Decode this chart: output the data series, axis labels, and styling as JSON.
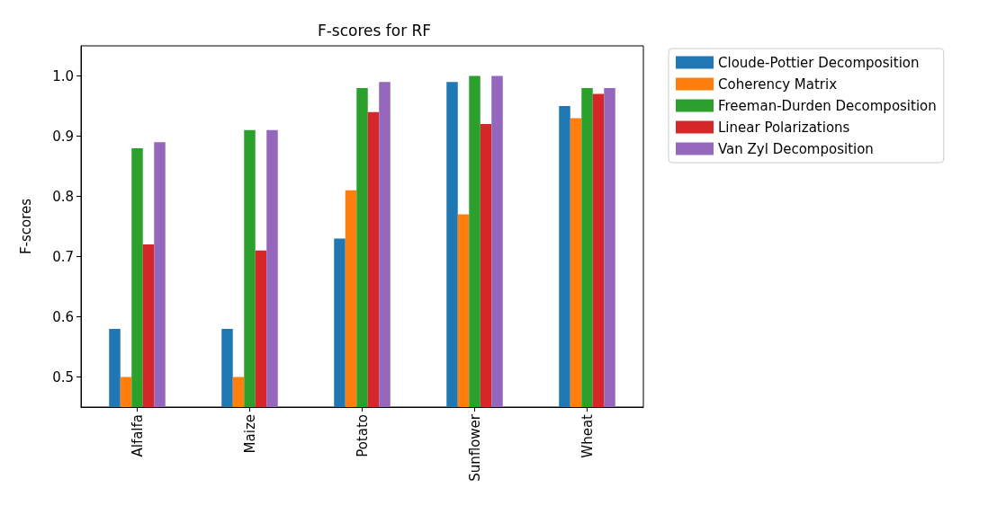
{
  "chart_data": {
    "type": "bar",
    "title": "F-scores for RF",
    "ylabel": "F-scores",
    "categories": [
      "Alfalfa",
      "Maize",
      "Potato",
      "Sunflower",
      "Wheat"
    ],
    "series": [
      {
        "name": "Cloude-Pottier Decomposition",
        "color": "#1f77b4",
        "values": [
          0.58,
          0.58,
          0.73,
          0.99,
          0.95
        ]
      },
      {
        "name": "Coherency Matrix",
        "color": "#ff7f0e",
        "values": [
          0.5,
          0.5,
          0.81,
          0.77,
          0.93
        ]
      },
      {
        "name": "Freeman-Durden Decomposition",
        "color": "#2ca02c",
        "values": [
          0.88,
          0.91,
          0.98,
          1.0,
          0.98
        ]
      },
      {
        "name": "Linear Polarizations",
        "color": "#d62728",
        "values": [
          0.72,
          0.71,
          0.94,
          0.92,
          0.97
        ]
      },
      {
        "name": "Van Zyl Decomposition",
        "color": "#9467bd",
        "values": [
          0.89,
          0.91,
          0.99,
          1.0,
          0.98
        ]
      }
    ],
    "ylim": [
      0.45,
      1.05
    ],
    "yticks": [
      0.5,
      0.6,
      0.7,
      0.8,
      0.9,
      {
        "value": 1,
        "label": "1.0"
      }
    ],
    "grid": false,
    "legend": "top right"
  }
}
